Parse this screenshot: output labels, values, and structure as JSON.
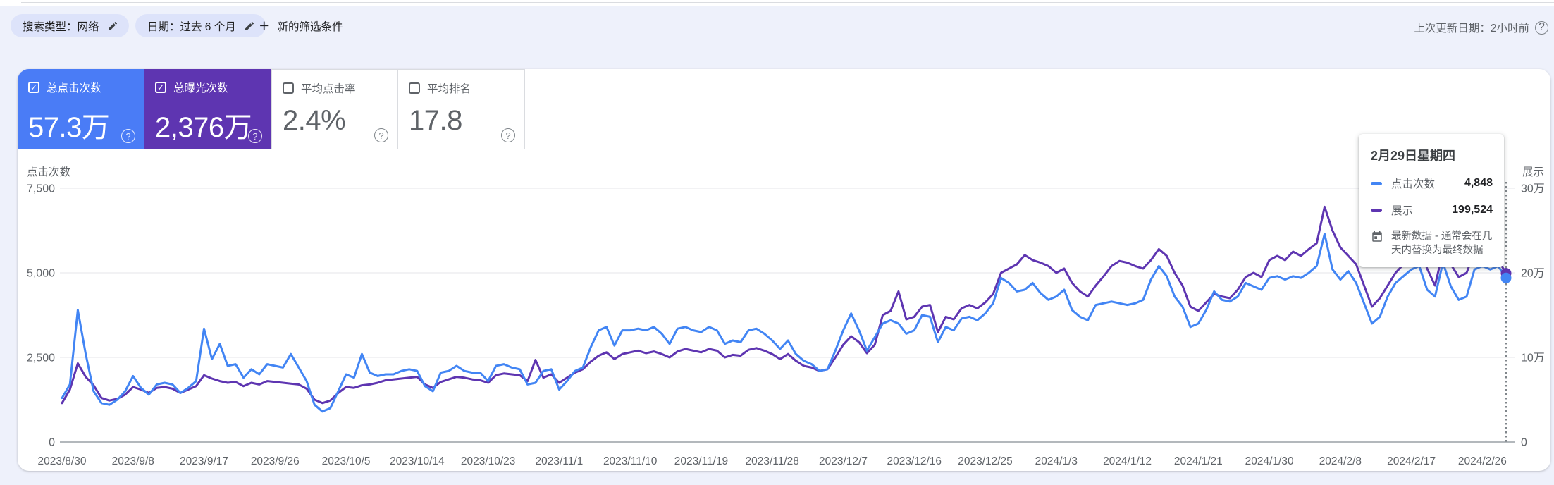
{
  "colors": {
    "clicks_blue": "#4285f4",
    "clicks_tile_bg": "#4a7cf6",
    "impressions_purple": "#5e35b1",
    "impressions_tile_bg": "#5e35b1",
    "grid_line": "#e9eaee",
    "axis_line": "#9aa0a6",
    "text_gray": "#5f6368",
    "page_bg": "#eef1fb",
    "chip_bg": "#dde3fa"
  },
  "filter_bar": {
    "chips": [
      {
        "label": "搜索类型：网络"
      },
      {
        "label": "日期：过去 6 个月"
      }
    ],
    "add_filter_label": "新的筛选条件",
    "last_updated": "上次更新日期：2小时前",
    "help_glyph": "?"
  },
  "metric_cards": [
    {
      "label": "总点击次数",
      "value": "57.3万",
      "checked": true,
      "bg": "#4a7cf6",
      "check_glyph": "✓",
      "help_glyph": "?"
    },
    {
      "label": "总曝光次数",
      "value": "2,376万",
      "checked": true,
      "bg": "#5e35b1",
      "check_glyph": "✓",
      "help_glyph": "?"
    },
    {
      "label": "平均点击率",
      "value": "2.4%",
      "checked": false,
      "bg": "#ffffff",
      "check_glyph": "",
      "help_glyph": "?"
    },
    {
      "label": "平均排名",
      "value": "17.8",
      "checked": false,
      "bg": "#ffffff",
      "check_glyph": "",
      "help_glyph": "?"
    }
  ],
  "chart_data": {
    "type": "line",
    "title": "",
    "left_axis": {
      "title": "点击次数",
      "ticks": [
        "7,500",
        "5,000",
        "2,500",
        "0"
      ],
      "tick_values": [
        7500,
        5000,
        2500,
        0
      ],
      "max": 7500
    },
    "right_axis": {
      "title": "展示",
      "ticks": [
        "30万",
        "20万",
        "10万",
        "0"
      ],
      "tick_values": [
        300000,
        200000,
        100000,
        0
      ],
      "max": 300000
    },
    "x_tick_labels": [
      "2023/8/30",
      "2023/9/8",
      "2023/9/17",
      "2023/9/26",
      "2023/10/5",
      "2023/10/14",
      "2023/10/23",
      "2023/11/1",
      "2023/11/10",
      "2023/11/19",
      "2023/11/28",
      "2023/12/7",
      "2023/12/16",
      "2023/12/25",
      "2024/1/3",
      "2024/1/12",
      "2024/1/21",
      "2024/1/30",
      "2024/2/8",
      "2024/2/17",
      "2024/2/26"
    ],
    "x_tick_day_indices": [
      0,
      9,
      18,
      27,
      36,
      45,
      54,
      63,
      72,
      81,
      90,
      99,
      108,
      117,
      126,
      135,
      144,
      153,
      162,
      171,
      180
    ],
    "days_total": 184,
    "grid": true,
    "legend_position": "tooltip",
    "hover": {
      "day_index": 183,
      "date": "2024/2/29"
    },
    "series": [
      {
        "name": "点击次数",
        "axis": "left",
        "color": "#4285f4",
        "values": [
          1300,
          1700,
          3900,
          2600,
          1500,
          1150,
          1100,
          1250,
          1500,
          1950,
          1600,
          1400,
          1700,
          1750,
          1700,
          1450,
          1600,
          1800,
          3350,
          2450,
          2900,
          2250,
          2300,
          1900,
          2150,
          2000,
          2300,
          2250,
          2200,
          2600,
          2200,
          1800,
          1100,
          900,
          1000,
          1500,
          2000,
          1900,
          2600,
          2050,
          1950,
          2000,
          2000,
          2100,
          2150,
          2100,
          1650,
          1500,
          2050,
          2100,
          2250,
          2100,
          2050,
          2050,
          1800,
          2250,
          2300,
          2200,
          2150,
          1700,
          1750,
          2100,
          2150,
          1550,
          1800,
          2100,
          2200,
          2800,
          3300,
          3400,
          2850,
          3300,
          3300,
          3350,
          3300,
          3400,
          3200,
          2900,
          3350,
          3400,
          3300,
          3250,
          3400,
          3300,
          2900,
          3000,
          2950,
          3300,
          3350,
          3200,
          3000,
          2750,
          3000,
          2600,
          2400,
          2300,
          2100,
          2150,
          2700,
          3300,
          3800,
          3300,
          2700,
          3100,
          3500,
          3600,
          3500,
          3200,
          3300,
          3750,
          3700,
          2950,
          3400,
          3300,
          3650,
          3700,
          3600,
          3800,
          4100,
          4850,
          4700,
          4450,
          4500,
          4700,
          4400,
          4200,
          4300,
          4500,
          3900,
          3700,
          3600,
          4050,
          4100,
          4150,
          4100,
          4050,
          4100,
          4200,
          4800,
          5200,
          4900,
          4300,
          4000,
          3400,
          3500,
          3900,
          4450,
          4200,
          4150,
          4300,
          4700,
          4600,
          4500,
          4850,
          4900,
          4800,
          4900,
          4850,
          5000,
          5200,
          6150,
          5100,
          4800,
          5050,
          4700,
          4100,
          3500,
          3700,
          4300,
          4700,
          4900,
          5100,
          5200,
          4500,
          4300,
          5300,
          4600,
          4200,
          4300,
          5100,
          5200,
          5100,
          5200,
          4848
        ]
      },
      {
        "name": "展示",
        "axis": "right",
        "color": "#5e35b1",
        "values": [
          46000,
          62000,
          93000,
          77000,
          67000,
          52000,
          49000,
          51000,
          56000,
          65000,
          62000,
          58000,
          64000,
          65000,
          63000,
          58000,
          62000,
          66000,
          79000,
          75000,
          72000,
          70000,
          71000,
          66000,
          70000,
          68000,
          72000,
          71000,
          70000,
          69000,
          68000,
          63000,
          50000,
          46000,
          49000,
          58000,
          65000,
          64000,
          67000,
          68000,
          70000,
          73000,
          74000,
          75000,
          76000,
          77000,
          68000,
          64000,
          71000,
          74000,
          77000,
          76000,
          74000,
          73000,
          70000,
          79000,
          81000,
          80000,
          79000,
          72000,
          97000,
          76000,
          80000,
          70000,
          76000,
          82000,
          86000,
          95000,
          102000,
          106000,
          98000,
          104000,
          106000,
          108000,
          105000,
          107000,
          104000,
          100000,
          107000,
          110000,
          108000,
          106000,
          110000,
          108000,
          100000,
          103000,
          102000,
          109000,
          111000,
          108000,
          104000,
          98000,
          104000,
          96000,
          90000,
          88000,
          84000,
          86000,
          100000,
          115000,
          125000,
          118000,
          105000,
          115000,
          150000,
          155000,
          178000,
          145000,
          148000,
          160000,
          162000,
          130000,
          148000,
          145000,
          158000,
          162000,
          158000,
          165000,
          175000,
          200000,
          205000,
          210000,
          221000,
          215000,
          212000,
          208000,
          200000,
          205000,
          188000,
          178000,
          172000,
          185000,
          196000,
          208000,
          214000,
          212000,
          208000,
          205000,
          215000,
          228000,
          220000,
          200000,
          185000,
          160000,
          155000,
          165000,
          175000,
          172000,
          170000,
          180000,
          195000,
          200000,
          195000,
          215000,
          220000,
          215000,
          225000,
          220000,
          228000,
          235000,
          278000,
          250000,
          230000,
          220000,
          210000,
          185000,
          160000,
          170000,
          185000,
          200000,
          210000,
          215000,
          230000,
          205000,
          185000,
          225000,
          210000,
          195000,
          200000,
          225000,
          235000,
          230000,
          215000,
          199524
        ]
      }
    ]
  },
  "tooltip": {
    "title": "2月29日星期四",
    "rows": [
      {
        "label": "点击次数",
        "value": "4,848",
        "color": "#4285f4"
      },
      {
        "label": "展示",
        "value": "199,524",
        "color": "#5e35b1"
      }
    ],
    "note": "最新数据 - 通常会在几天内替换为最终数据"
  }
}
